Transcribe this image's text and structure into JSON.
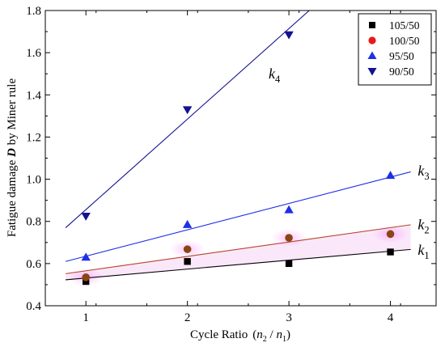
{
  "chart_data": {
    "type": "scatter",
    "xlabel": "Cycle Ratio",
    "xlabel_formula": {
      "lpar": "(",
      "num": "n",
      "num_sub": "2",
      "slash": " / ",
      "den": "n",
      "den_sub": "1",
      "rpar": ")"
    },
    "ylabel": {
      "pre": "Fatigue damage ",
      "bold": "D",
      "post": " by Miner rule"
    },
    "xlim": [
      0.6,
      4.45
    ],
    "ylim": [
      0.4,
      1.8
    ],
    "xticks": [
      1,
      2,
      3,
      4
    ],
    "yticks": [
      0.4,
      0.6,
      0.8,
      1.0,
      1.2,
      1.4,
      1.6,
      1.8
    ],
    "ytick_labels": [
      "0.4",
      "0.6",
      "0.8",
      "1.0",
      "1.2",
      "1.4",
      "1.6",
      "1.8"
    ],
    "grid": false,
    "legend": {
      "position": "top-right"
    },
    "series": [
      {
        "name": "105/50",
        "marker": "square",
        "color": "#000000",
        "x": [
          1,
          2,
          3,
          4
        ],
        "y": [
          0.515,
          0.61,
          0.6,
          0.655
        ]
      },
      {
        "name": "100/50",
        "marker": "circle",
        "color": "#e8191b",
        "fill_color": "#8b4513",
        "x": [
          1,
          2,
          3,
          4
        ],
        "y": [
          0.535,
          0.668,
          0.722,
          0.74
        ]
      },
      {
        "name": "95/50",
        "marker": "triangle-up",
        "color": "#1f2fe6",
        "x": [
          1,
          2,
          3,
          4
        ],
        "y": [
          0.63,
          0.785,
          0.855,
          1.018
        ]
      },
      {
        "name": "90/50",
        "marker": "triangle-down",
        "color": "#131390",
        "x": [
          1,
          2,
          3
        ],
        "y": [
          0.825,
          1.33,
          1.685
        ]
      }
    ],
    "fit_lines": [
      {
        "label": "k",
        "sub": "1",
        "color": "#000000",
        "x": [
          0.8,
          4.2
        ],
        "y": [
          0.523,
          0.667
        ],
        "label_at": [
          4.27,
          0.665
        ]
      },
      {
        "label": "k",
        "sub": "2",
        "color": "#b5442a",
        "x": [
          0.8,
          4.2
        ],
        "y": [
          0.552,
          0.784
        ],
        "label_at": [
          4.27,
          0.785
        ]
      },
      {
        "label": "k",
        "sub": "3",
        "color": "#1f2fe6",
        "x": [
          0.8,
          4.2
        ],
        "y": [
          0.61,
          1.035
        ],
        "label_at": [
          4.27,
          1.04
        ]
      },
      {
        "label": "k",
        "sub": "4",
        "color": "#131390",
        "x": [
          0.8,
          3.2
        ],
        "y": [
          0.77,
          1.8
        ],
        "label_at": [
          2.8,
          1.5
        ]
      }
    ]
  }
}
